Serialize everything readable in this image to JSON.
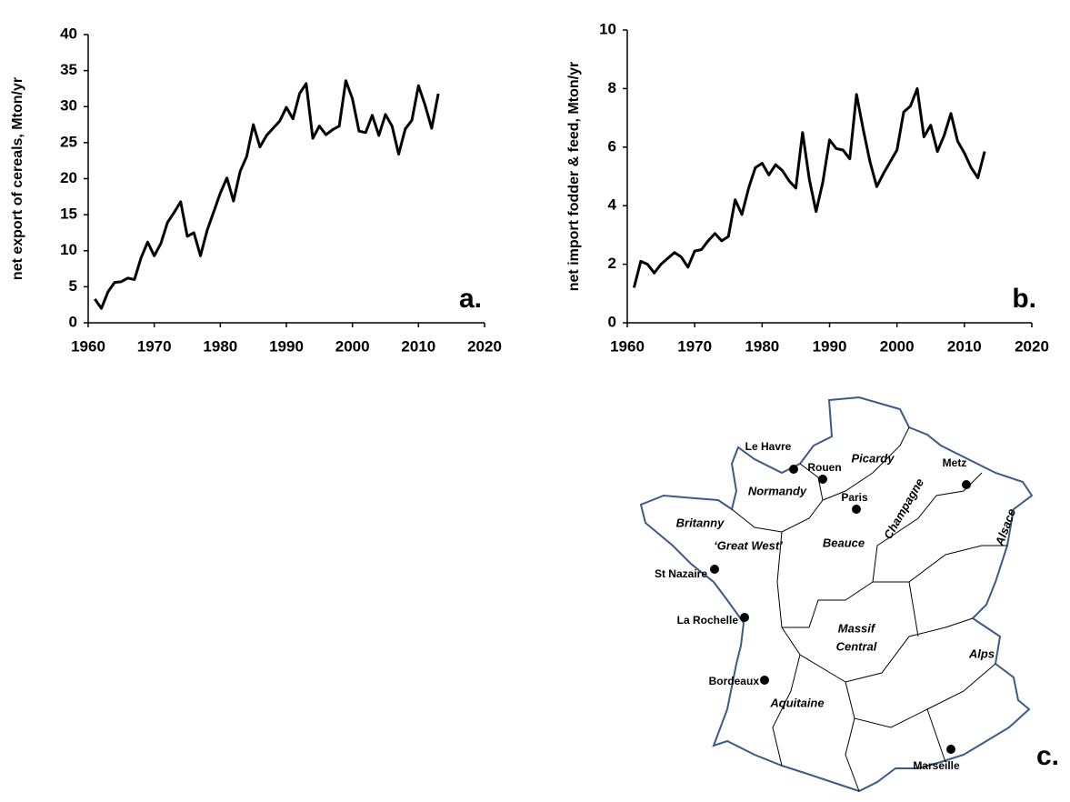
{
  "chart_data": [
    {
      "type": "line",
      "y_label": "net export of cereals, Mton/yr",
      "annotation": "a.",
      "color": "#000000",
      "x": [
        1961,
        1962,
        1963,
        1964,
        1965,
        1966,
        1967,
        1968,
        1969,
        1970,
        1971,
        1972,
        1973,
        1974,
        1975,
        1976,
        1977,
        1978,
        1979,
        1980,
        1981,
        1982,
        1983,
        1984,
        1985,
        1986,
        1987,
        1988,
        1989,
        1990,
        1991,
        1992,
        1993,
        1994,
        1995,
        1996,
        1997,
        1998,
        1999,
        2000,
        2001,
        2002,
        2003,
        2004,
        2005,
        2006,
        2007,
        2008,
        2009,
        2010,
        2011,
        2012,
        2013
      ],
      "values": [
        3.3,
        2.0,
        4.3,
        5.6,
        5.7,
        6.2,
        6.0,
        9.0,
        11.2,
        9.3,
        11.0,
        13.9,
        15.3,
        16.8,
        12.0,
        12.5,
        9.3,
        12.8,
        15.4,
        18.0,
        20.1,
        16.9,
        21.0,
        23.1,
        27.5,
        24.4,
        26.0,
        27.0,
        28.0,
        29.9,
        28.3,
        31.8,
        33.2,
        25.6,
        27.3,
        26.1,
        26.8,
        27.3,
        33.6,
        31.1,
        26.6,
        26.4,
        28.8,
        26.0,
        28.9,
        27.3,
        23.4,
        26.9,
        28.1,
        32.9,
        30.2,
        27.0,
        31.8
      ],
      "xlim": [
        1960,
        2020
      ],
      "xticks": [
        1960,
        1970,
        1980,
        1990,
        2000,
        2010,
        2020
      ],
      "ylim": [
        0,
        40
      ],
      "yticks": [
        0,
        5,
        10,
        15,
        20,
        25,
        30,
        35,
        40
      ]
    },
    {
      "type": "line",
      "y_label": "net import fodder & feed, Mton/yr",
      "annotation": "b.",
      "color": "#000000",
      "x": [
        1961,
        1962,
        1963,
        1964,
        1965,
        1966,
        1967,
        1968,
        1969,
        1970,
        1971,
        1972,
        1973,
        1974,
        1975,
        1976,
        1977,
        1978,
        1979,
        1980,
        1981,
        1982,
        1983,
        1984,
        1985,
        1986,
        1987,
        1988,
        1989,
        1990,
        1991,
        1992,
        1993,
        1994,
        1995,
        1996,
        1997,
        1998,
        1999,
        2000,
        2001,
        2002,
        2003,
        2004,
        2005,
        2006,
        2007,
        2008,
        2009,
        2010,
        2011,
        2012,
        2013
      ],
      "values": [
        1.2,
        2.1,
        2.0,
        1.7,
        2.0,
        2.2,
        2.4,
        2.25,
        1.9,
        2.45,
        2.5,
        2.8,
        3.05,
        2.8,
        2.95,
        4.2,
        3.7,
        4.6,
        5.3,
        5.45,
        5.05,
        5.4,
        5.2,
        4.85,
        4.6,
        6.5,
        4.9,
        3.8,
        4.8,
        6.25,
        5.95,
        5.9,
        5.6,
        7.8,
        6.6,
        5.5,
        4.65,
        5.1,
        5.5,
        5.9,
        7.2,
        7.4,
        8.0,
        6.35,
        6.75,
        5.85,
        6.4,
        7.15,
        6.2,
        5.8,
        5.3,
        4.95,
        5.85
      ],
      "xlim": [
        1960,
        2020
      ],
      "xticks": [
        1960,
        1970,
        1980,
        1990,
        2000,
        2010,
        2020
      ],
      "ylim": [
        0,
        10
      ],
      "yticks": [
        0,
        2,
        4,
        6,
        8,
        10
      ]
    }
  ],
  "map": {
    "cities": [
      "Le Havre",
      "Rouen",
      "Paris",
      "Metz",
      "St Nazaire",
      "La Rochelle",
      "Bordeaux",
      "Marseille"
    ],
    "regions": [
      "Picardy",
      "Normandy",
      "Britanny",
      "‘Great West’",
      "Beauce",
      "Champagne",
      "Alsace",
      "Massif",
      "Central",
      "Alps",
      "Aquitaine"
    ],
    "panel_label": "c."
  }
}
